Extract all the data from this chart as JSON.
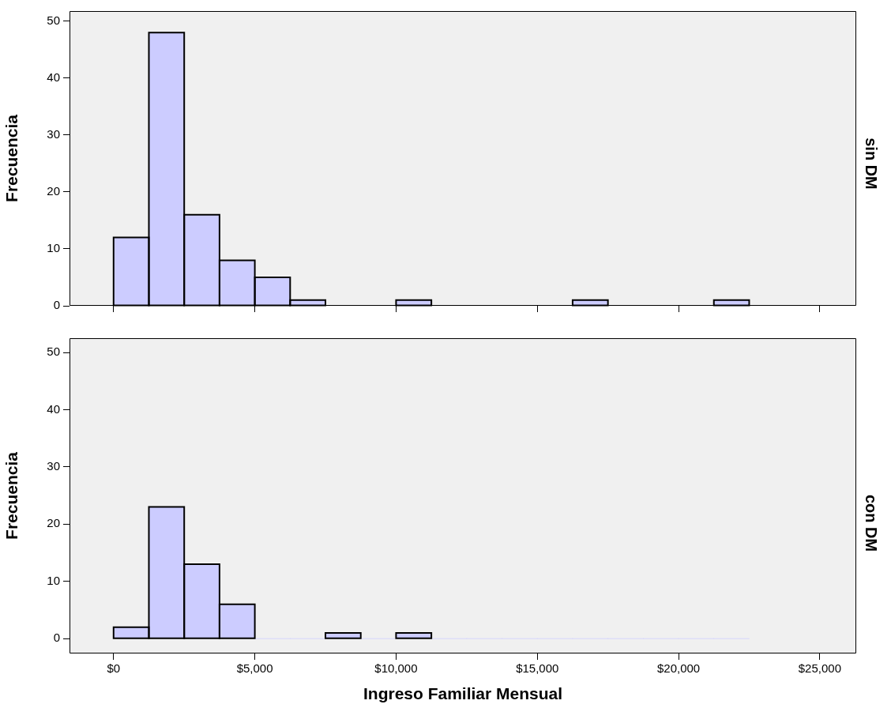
{
  "chart_data": [
    {
      "type": "histogram",
      "title": "sin DM",
      "ylabel": "Frecuencia",
      "color": "#ccccff",
      "bins": [
        0,
        1250,
        2500,
        3750,
        5000,
        6250,
        7500,
        8750,
        10000,
        11250,
        12500,
        13750,
        15000,
        16250,
        17500,
        18750,
        20000,
        21250,
        22500
      ],
      "values": [
        12,
        48,
        16,
        8,
        5,
        1,
        0,
        0,
        1,
        0,
        0,
        0,
        0,
        1,
        0,
        0,
        0,
        1
      ],
      "xlim": [
        -1560,
        26290
      ],
      "ylim": [
        0,
        51.8
      ],
      "yticks": [
        0,
        10,
        20,
        30,
        40,
        50
      ],
      "xticks": [
        {
          "value": 0,
          "label": null
        },
        {
          "value": 5000,
          "label": null
        },
        {
          "value": 10000,
          "label": null
        },
        {
          "value": 15000,
          "label": null
        },
        {
          "value": 20000,
          "label": null
        },
        {
          "value": 25000,
          "label": null
        }
      ],
      "tick_labels": "y",
      "grid": false,
      "legend": false
    },
    {
      "type": "histogram",
      "title": "con DM",
      "ylabel": "Frecuencia",
      "xlabel": "Ingreso Familiar Mensual",
      "color": "#ccccff",
      "bins": [
        0,
        1250,
        2500,
        3750,
        5000,
        6250,
        7500,
        8750,
        10000,
        11250,
        12500,
        13750,
        15000,
        16250,
        17500,
        18750,
        20000,
        21250,
        22500
      ],
      "values": [
        2,
        23,
        13,
        6,
        0,
        0,
        1,
        0,
        1,
        0,
        0,
        0,
        0,
        0,
        0,
        0,
        0,
        0
      ],
      "xlim": [
        -1560,
        26290
      ],
      "ylim": [
        -2.6,
        52.5
      ],
      "yticks": [
        0,
        10,
        20,
        30,
        40,
        50
      ],
      "xticks": [
        {
          "value": 0,
          "label": "$0"
        },
        {
          "value": 5000,
          "label": "$5,000"
        },
        {
          "value": 10000,
          "label": "$10,000"
        },
        {
          "value": 15000,
          "label": "$15,000"
        },
        {
          "value": 20000,
          "label": "$20,000"
        },
        {
          "value": 25000,
          "label": "$25,000"
        }
      ],
      "grid": false,
      "legend": false
    }
  ]
}
